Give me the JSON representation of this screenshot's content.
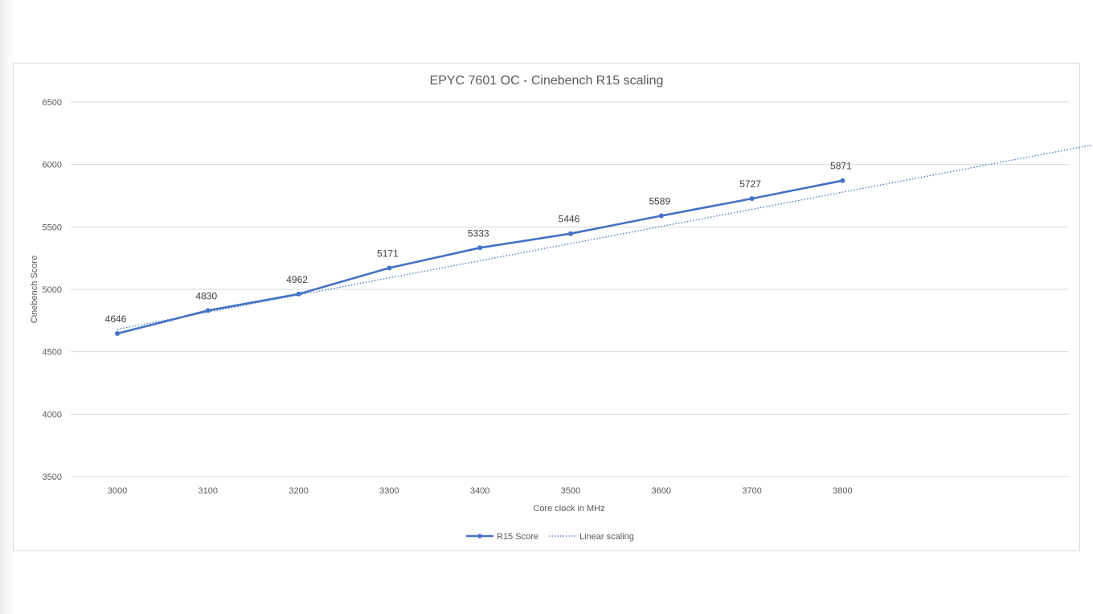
{
  "chart_data": {
    "type": "line",
    "title": "EPYC 7601 OC - Cinebench R15 scaling",
    "xlabel": "Core clock in MHz",
    "ylabel": "Cinebench Score",
    "ylim": [
      3500,
      6500
    ],
    "yticks": [
      "3500",
      "4000",
      "4500",
      "5000",
      "5500",
      "6000",
      "6500"
    ],
    "categories": [
      "3000",
      "3100",
      "3200",
      "3300",
      "3400",
      "3500",
      "3600",
      "3700",
      "3800"
    ],
    "grid": true,
    "legend_position": "bottom",
    "series": [
      {
        "name": "R15 Score",
        "style": "solid",
        "color": "#4472c4",
        "values": [
          4646,
          4830,
          4962,
          5171,
          5333,
          5446,
          5589,
          5727,
          5871
        ]
      },
      {
        "name": "Linear scaling",
        "style": "dotted",
        "color": "#4472c4",
        "x": [
          "3000",
          "4100"
        ],
        "values": [
          4680,
          6190
        ]
      }
    ]
  }
}
